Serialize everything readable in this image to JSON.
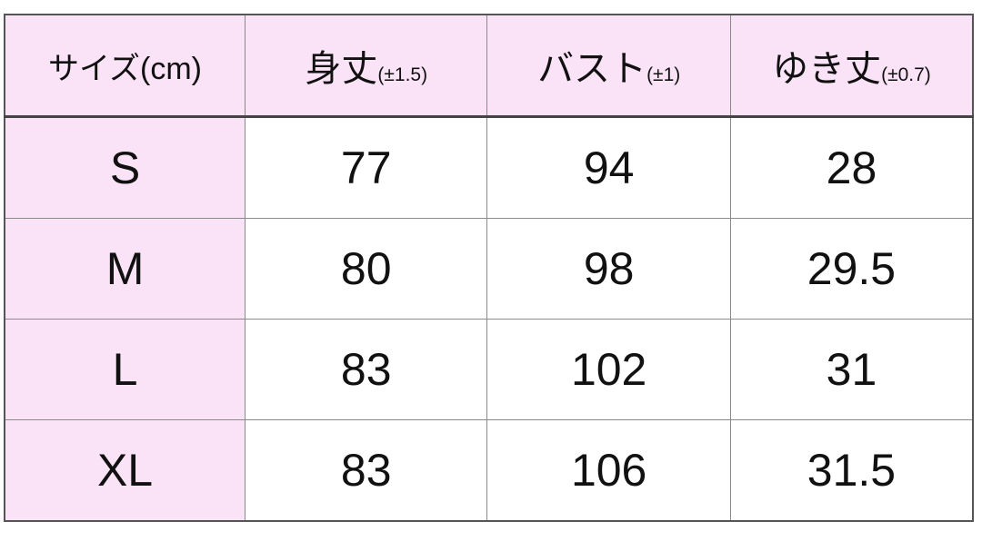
{
  "table": {
    "headers": [
      {
        "label": "サイズ(cm)",
        "tolerance": ""
      },
      {
        "label": "身丈",
        "tolerance": "(±1.5)"
      },
      {
        "label": "バスト",
        "tolerance": "(±1)"
      },
      {
        "label": "ゆき丈",
        "tolerance": "(±0.7)"
      }
    ],
    "rows": [
      [
        "S",
        "77",
        "94",
        "28"
      ],
      [
        "M",
        "80",
        "98",
        "29.5"
      ],
      [
        "L",
        "83",
        "102",
        "31"
      ],
      [
        "XL",
        "83",
        "106",
        "31.5"
      ]
    ]
  },
  "colors": {
    "header_bg": "#fbe3f7",
    "border": "#8a8a8a"
  }
}
